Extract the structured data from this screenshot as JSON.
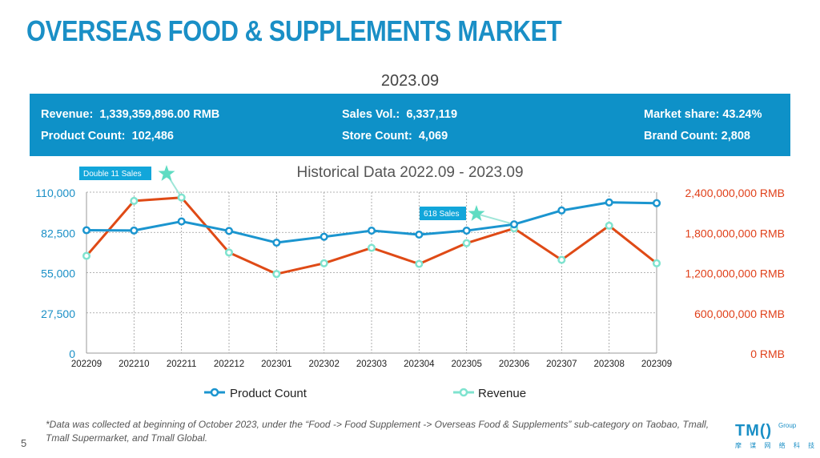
{
  "page": {
    "title": "OVERSEAS FOOD & SUPPLEMENTS MARKET",
    "period": "2023.09",
    "footnote": "*Data was collected at beginning of October 2023, under the “Food -> Food Supplement -> Overseas Food & Supplements” sub-category on Taobao, Tmall, Tmall Supermarket, and Tmall Global.",
    "page_number": "5",
    "logo_text": "TM()",
    "logo_group": "Group",
    "logo_cn": "摩 谋 网 络 科 技"
  },
  "kpis": {
    "revenue_label": "Revenue:",
    "revenue_value": "1,339,359,896.00 RMB",
    "product_count_label": "Product Count:",
    "product_count_value": "102,486",
    "sales_vol_label": "Sales Vol.:",
    "sales_vol_value": "6,337,119",
    "store_count_label": "Store Count:",
    "store_count_value": "4,069",
    "market_share_label": "Market share:",
    "market_share_value": "43.24%",
    "brand_count_label": "Brand Count:",
    "brand_count_value": "2,808"
  },
  "colors": {
    "brand": "#1a8fc6",
    "kpi_bg": "#0e91c8",
    "product_line": "#1b95cf",
    "revenue_line": "#df4a16",
    "revenue_marker": "#7fe3cf",
    "star": "#5fdcc2",
    "axis_left": "#1a8fc6",
    "axis_right": "#e0401a"
  },
  "chart_data": {
    "type": "line",
    "title": "Historical Data 2022.09 - 2023.09",
    "categories": [
      "202209",
      "202210",
      "202211",
      "202212",
      "202301",
      "202302",
      "202303",
      "202304",
      "202305",
      "202306",
      "202307",
      "202308",
      "202309"
    ],
    "series": [
      {
        "name": "Product Count",
        "axis": "left",
        "values": [
          84000,
          83800,
          90000,
          83500,
          75500,
          79500,
          83700,
          81000,
          83700,
          88000,
          97500,
          103000,
          102486
        ]
      },
      {
        "name": "Revenue",
        "axis": "right",
        "values": [
          1450000000,
          2270000000,
          2320000000,
          1500000000,
          1180000000,
          1340000000,
          1570000000,
          1330000000,
          1640000000,
          1860000000,
          1390000000,
          1900000000,
          1339359896
        ]
      }
    ],
    "y_left": {
      "min": 0,
      "max": 110000,
      "ticks": [
        "0",
        "27,500",
        "55,000",
        "82,500",
        "110,000"
      ]
    },
    "y_right": {
      "min": 0,
      "max": 2400000000,
      "ticks": [
        "0 RMB",
        "600,000,000 RMB",
        "1,200,000,000 RMB",
        "1,800,000,000 RMB",
        "2,400,000,000 RMB"
      ]
    },
    "annotations": [
      {
        "text": "Double 11 Sales",
        "category": "202211"
      },
      {
        "text": "618 Sales",
        "category": "202306"
      }
    ],
    "legend": [
      "Product Count",
      "Revenue"
    ],
    "grid": true
  }
}
